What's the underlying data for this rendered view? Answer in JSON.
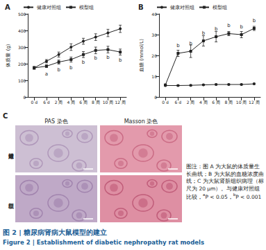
{
  "chart_data": [
    {
      "type": "line",
      "title": "A",
      "categories": [
        "0 d",
        "6 d",
        "2 周",
        "4 周",
        "6 周",
        "8 周",
        "10 周",
        "12 周"
      ],
      "ylabel": "体质量 (g)",
      "ylim": [
        0,
        500
      ],
      "yticks": [
        0,
        100,
        200,
        300,
        400,
        500
      ],
      "legend": "top",
      "grid": false,
      "series": [
        {
          "name": "健康对照组",
          "color": "#222222",
          "marker": "circle",
          "line_style": "solid",
          "values": [
            175,
            215,
            255,
            300,
            335,
            360,
            385,
            410
          ],
          "errors": [
            8,
            10,
            15,
            20,
            18,
            20,
            22,
            22
          ]
        },
        {
          "name": "模型组",
          "color": "#222222",
          "marker": "square",
          "line_style": "solid",
          "values": [
            175,
            185,
            210,
            225,
            255,
            280,
            285,
            270
          ],
          "errors": [
            8,
            8,
            12,
            15,
            18,
            20,
            20,
            18
          ],
          "annotations": [
            null,
            "a",
            "b",
            "b",
            "b",
            "b",
            "b",
            "b"
          ]
        }
      ]
    },
    {
      "type": "line",
      "title": "B",
      "categories": [
        "0 d",
        "6 d",
        "2 周",
        "4 周",
        "6 周",
        "8 周",
        "10 周",
        "12 周"
      ],
      "ylabel": "血糖 (mmol/L)",
      "ylim": [
        0,
        40
      ],
      "yticks": [
        0,
        10,
        20,
        30,
        40
      ],
      "legend": "top",
      "grid": false,
      "series": [
        {
          "name": "健康对照组",
          "color": "#222222",
          "marker": "circle",
          "line_style": "solid",
          "values": [
            5.5,
            5.5,
            5.6,
            5.8,
            6,
            6,
            6,
            6.3
          ],
          "errors": [
            0.3,
            0.3,
            0.3,
            0.3,
            0.3,
            0.3,
            0.3,
            0.3
          ]
        },
        {
          "name": "模型组",
          "color": "#222222",
          "marker": "square",
          "line_style": "solid",
          "values": [
            5.8,
            21,
            22,
            27,
            29,
            30.5,
            30,
            33
          ],
          "errors": [
            0.3,
            1.5,
            3,
            2.5,
            2.5,
            1,
            1.5,
            1
          ],
          "annotations": [
            null,
            "b",
            "b",
            "b",
            "b",
            "b",
            "b",
            "b"
          ]
        }
      ]
    }
  ],
  "panel_c": {
    "label": "C",
    "columns": [
      "PAS 染色",
      "Masson 染色"
    ],
    "rows": [
      "健康对照组",
      "模型组"
    ]
  },
  "note": {
    "text": "图注：图 A 为大鼠的体质量生长曲线；B 为大鼠的血糖浓度曲线；C 为大鼠肾脏组织病理（标尺为 20 μm）。与健康对照组比较，",
    "significance": [
      {
        "mark": "a",
        "text": "P < 0.05，"
      },
      {
        "mark": "b",
        "text": "P < 0.001"
      }
    ]
  },
  "caption": [
    "图 2 | 糖尿病肾病大鼠模型的建立",
    "Figure 2 | Establishment of diabetic nephropathy rat models"
  ]
}
